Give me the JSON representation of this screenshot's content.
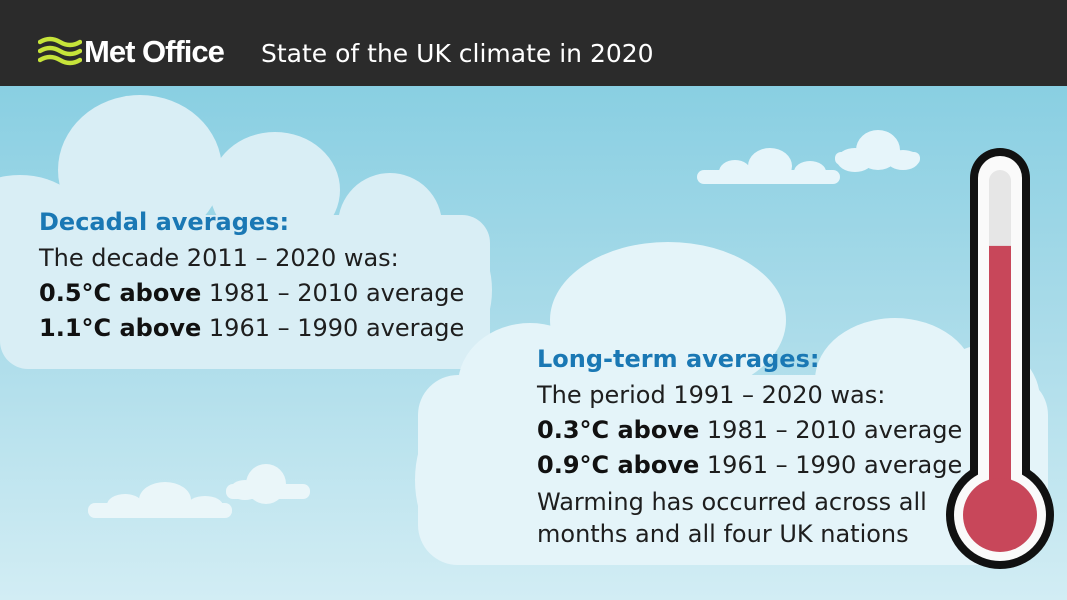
{
  "header": {
    "brand": "Met Office",
    "title": "State of the UK climate in 2020"
  },
  "decadal": {
    "heading": "Decadal averages:",
    "intro": "The decade 2011 – 2020 was:",
    "line1_bold": "0.5°C above",
    "line1_rest": " 1981 – 2010 average",
    "line2_bold": "1.1°C above",
    "line2_rest": " 1961 – 1990 average"
  },
  "longterm": {
    "heading": "Long-term averages:",
    "intro": "The period 1991 – 2020 was:",
    "line1_bold": "0.3°C above",
    "line1_rest": " 1981 – 2010 average",
    "line2_bold": "0.9°C above",
    "line2_rest": " 1961 – 1990 average",
    "note1": "Warming has occurred across all",
    "note2": "months and all four UK nations"
  },
  "thermometer": {
    "fill_fraction": 0.78
  },
  "colors": {
    "header_bg": "#2b2b2b",
    "logo": "#c6e43a",
    "heading": "#1a78b4",
    "thermometer_red": "#c8475a"
  },
  "icons": [
    "met-office-logo-icon",
    "thermometer-icon",
    "cloud-icon"
  ]
}
